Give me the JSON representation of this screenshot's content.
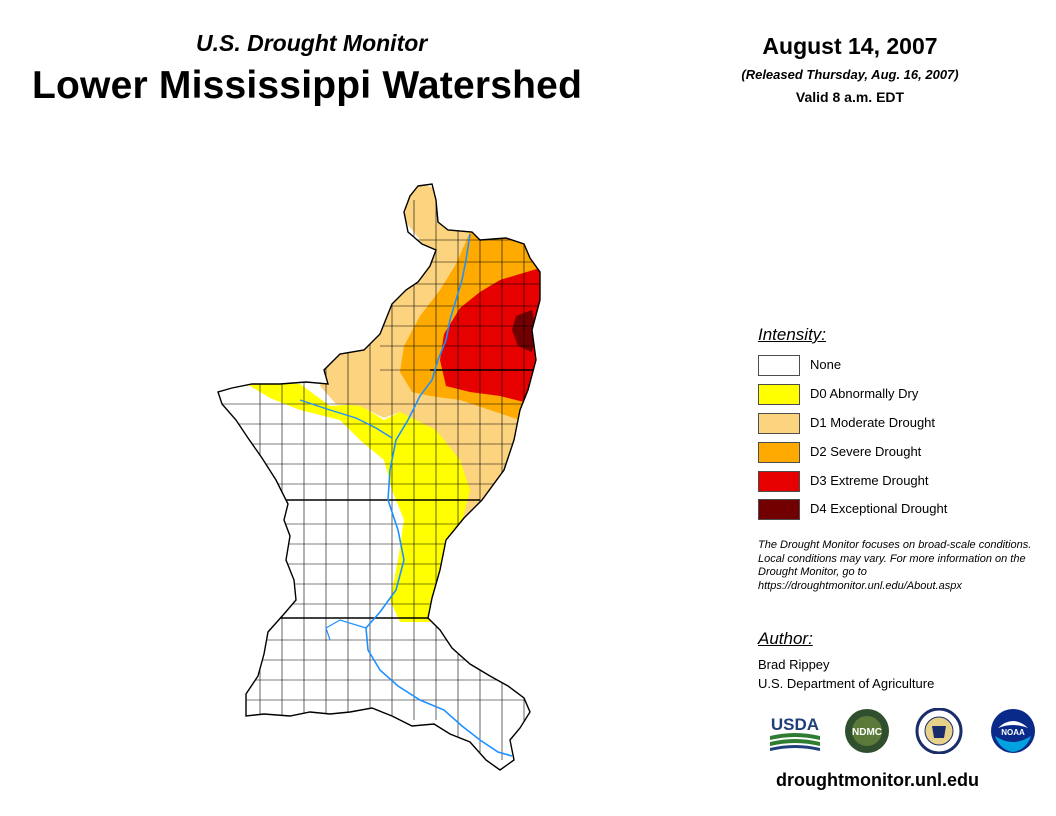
{
  "header": {
    "subtitle": "U.S. Drought Monitor",
    "title": "Lower Mississippi Watershed",
    "date": "August 14, 2007",
    "released": "(Released Thursday, Aug. 16, 2007)",
    "valid": "Valid 8 a.m. EDT"
  },
  "legend": {
    "heading": "Intensity:",
    "items": [
      {
        "label": "None",
        "color": "#ffffff"
      },
      {
        "label": "D0 Abnormally Dry",
        "color": "#ffff00"
      },
      {
        "label": "D1 Moderate Drought",
        "color": "#fcd37f"
      },
      {
        "label": "D2 Severe Drought",
        "color": "#ffaa00"
      },
      {
        "label": "D3 Extreme Drought",
        "color": "#e60000"
      },
      {
        "label": "D4 Exceptional Drought",
        "color": "#730000"
      }
    ]
  },
  "disclaimer": "The Drought Monitor focuses on broad-scale conditions. Local conditions may vary. For more information on the Drought Monitor, go to https://droughtmonitor.unl.edu/About.aspx",
  "author": {
    "heading": "Author:",
    "name": "Brad Rippey",
    "organization": "U.S. Department of Agriculture"
  },
  "logos": [
    {
      "name": "usda-logo",
      "text": "USDA"
    },
    {
      "name": "ndmc-logo",
      "text": "NDMC"
    },
    {
      "name": "doc-seal-logo",
      "text": ""
    },
    {
      "name": "noaa-logo",
      "text": "NOAA"
    }
  ],
  "website": "droughtmonitor.unl.edu",
  "colors": {
    "river": "#1e90ff",
    "county_border": "#000000"
  }
}
